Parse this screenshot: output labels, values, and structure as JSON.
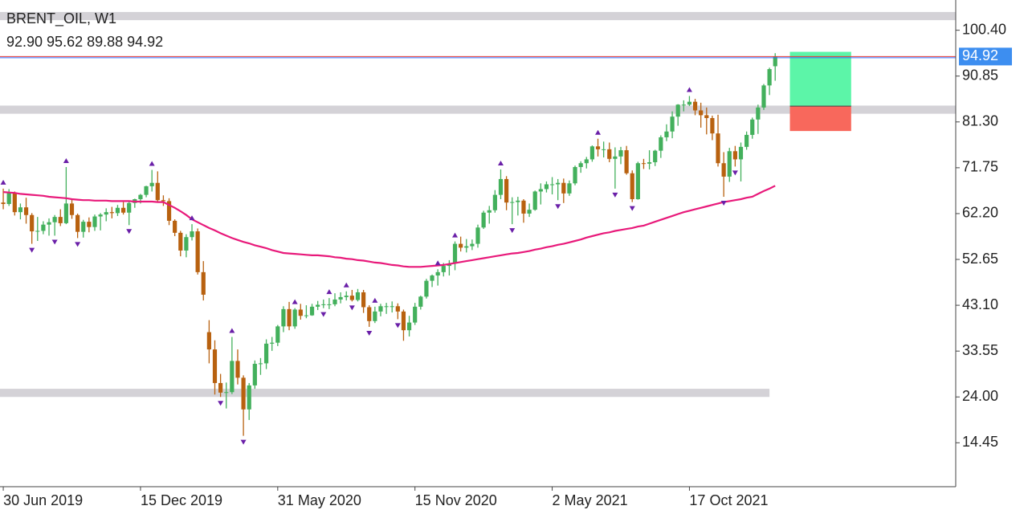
{
  "chart_data": {
    "type": "candlestick",
    "title": "BRENT_OIL, W1",
    "subtitle": "92.90 95.62 89.88 94.92",
    "up_color": "#43b05c",
    "down_color": "#b8610f",
    "x": [
      "2019-06-30",
      "2019-07-07",
      "2019-07-14",
      "2019-07-21",
      "2019-07-28",
      "2019-08-04",
      "2019-08-11",
      "2019-08-18",
      "2019-08-25",
      "2019-09-01",
      "2019-09-08",
      "2019-09-15",
      "2019-09-22",
      "2019-09-29",
      "2019-10-06",
      "2019-10-13",
      "2019-10-20",
      "2019-10-27",
      "2019-11-03",
      "2019-11-10",
      "2019-11-17",
      "2019-11-24",
      "2019-12-01",
      "2019-12-08",
      "2019-12-15",
      "2019-12-22",
      "2019-12-29",
      "2020-01-05",
      "2020-01-12",
      "2020-01-19",
      "2020-01-26",
      "2020-02-02",
      "2020-02-09",
      "2020-02-16",
      "2020-02-23",
      "2020-03-01",
      "2020-03-08",
      "2020-03-15",
      "2020-03-22",
      "2020-03-29",
      "2020-04-05",
      "2020-04-12",
      "2020-04-19",
      "2020-04-26",
      "2020-05-03",
      "2020-05-10",
      "2020-05-17",
      "2020-05-24",
      "2020-05-31",
      "2020-06-07",
      "2020-06-14",
      "2020-06-21",
      "2020-06-28",
      "2020-07-05",
      "2020-07-12",
      "2020-07-19",
      "2020-07-26",
      "2020-08-02",
      "2020-08-09",
      "2020-08-16",
      "2020-08-23",
      "2020-08-30",
      "2020-09-06",
      "2020-09-13",
      "2020-09-20",
      "2020-09-27",
      "2020-10-04",
      "2020-10-11",
      "2020-10-18",
      "2020-10-25",
      "2020-11-01",
      "2020-11-08",
      "2020-11-15",
      "2020-11-22",
      "2020-11-29",
      "2020-12-06",
      "2020-12-13",
      "2020-12-20",
      "2020-12-27",
      "2021-01-03",
      "2021-01-10",
      "2021-01-17",
      "2021-01-24",
      "2021-01-31",
      "2021-02-07",
      "2021-02-14",
      "2021-02-21",
      "2021-02-28",
      "2021-03-07",
      "2021-03-14",
      "2021-03-21",
      "2021-03-28",
      "2021-04-04",
      "2021-04-11",
      "2021-04-18",
      "2021-04-25",
      "2021-05-02",
      "2021-05-09",
      "2021-05-16",
      "2021-05-23",
      "2021-05-30",
      "2021-06-06",
      "2021-06-13",
      "2021-06-20",
      "2021-06-27",
      "2021-07-04",
      "2021-07-11",
      "2021-07-18",
      "2021-07-25",
      "2021-08-01",
      "2021-08-08",
      "2021-08-15",
      "2021-08-22",
      "2021-08-29",
      "2021-09-05",
      "2021-09-12",
      "2021-09-19",
      "2021-09-26",
      "2021-10-03",
      "2021-10-10",
      "2021-10-17",
      "2021-10-24",
      "2021-10-31",
      "2021-11-07",
      "2021-11-14",
      "2021-11-21",
      "2021-11-28",
      "2021-12-05",
      "2021-12-12",
      "2021-12-19",
      "2021-12-26",
      "2022-01-02",
      "2022-01-09",
      "2022-01-16",
      "2022-01-23",
      "2022-01-30"
    ],
    "candles": [
      [
        64.5,
        67.4,
        63.1,
        64.2
      ],
      [
        64.2,
        67.3,
        63.8,
        66.5
      ],
      [
        66.5,
        66.8,
        61.8,
        62.5
      ],
      [
        62.5,
        64.3,
        61.0,
        63.5
      ],
      [
        63.5,
        65.5,
        60.1,
        61.9
      ],
      [
        61.9,
        62.3,
        55.9,
        58.5
      ],
      [
        58.5,
        61.5,
        56.5,
        58.6
      ],
      [
        58.6,
        60.6,
        57.9,
        59.9
      ],
      [
        59.9,
        61.2,
        57.6,
        60.4
      ],
      [
        60.4,
        61.9,
        57.6,
        61.5
      ],
      [
        61.5,
        63.1,
        59.6,
        60.2
      ],
      [
        60.2,
        71.9,
        60.0,
        64.3
      ],
      [
        64.3,
        65.1,
        61.1,
        61.9
      ],
      [
        61.9,
        62.2,
        57.1,
        58.4
      ],
      [
        58.4,
        60.9,
        57.2,
        60.5
      ],
      [
        60.5,
        61.4,
        58.3,
        59.4
      ],
      [
        59.4,
        62.0,
        58.6,
        61.6
      ],
      [
        61.6,
        62.3,
        58.7,
        62.0
      ],
      [
        62.0,
        63.3,
        60.6,
        62.5
      ],
      [
        62.5,
        63.6,
        61.2,
        62.3
      ],
      [
        62.3,
        64.0,
        61.7,
        63.4
      ],
      [
        63.4,
        64.6,
        62.0,
        62.4
      ],
      [
        62.4,
        64.8,
        59.8,
        64.4
      ],
      [
        64.4,
        65.3,
        63.4,
        65.2
      ],
      [
        65.2,
        66.3,
        64.3,
        66.1
      ],
      [
        66.1,
        68.0,
        65.6,
        67.9
      ],
      [
        67.9,
        71.3,
        66.8,
        68.6
      ],
      [
        68.6,
        71.0,
        64.6,
        65.0
      ],
      [
        65.0,
        66.0,
        63.8,
        64.8
      ],
      [
        64.8,
        65.4,
        59.8,
        60.7
      ],
      [
        60.7,
        61.0,
        57.5,
        58.2
      ],
      [
        58.2,
        58.6,
        53.3,
        54.5
      ],
      [
        54.5,
        57.9,
        53.1,
        57.3
      ],
      [
        57.3,
        60.0,
        56.6,
        58.5
      ],
      [
        58.5,
        59.1,
        49.5,
        50.0
      ],
      [
        50.0,
        52.3,
        44.1,
        45.3
      ],
      [
        37.5,
        40.0,
        31.0,
        33.9
      ],
      [
        33.9,
        35.8,
        24.5,
        26.9
      ],
      [
        26.9,
        28.8,
        24.0,
        24.9
      ],
      [
        24.9,
        27.0,
        21.6,
        25.0
      ],
      [
        25.0,
        36.5,
        24.6,
        31.5
      ],
      [
        31.5,
        33.9,
        26.6,
        28.0
      ],
      [
        28.0,
        28.5,
        15.9,
        21.4
      ],
      [
        21.4,
        26.9,
        19.2,
        26.4
      ],
      [
        26.4,
        31.6,
        25.7,
        30.9
      ],
      [
        30.9,
        32.1,
        28.6,
        31.0
      ],
      [
        31.0,
        36.0,
        29.8,
        35.1
      ],
      [
        35.1,
        36.5,
        33.6,
        35.3
      ],
      [
        35.3,
        39.0,
        34.6,
        38.7
      ],
      [
        38.7,
        42.9,
        37.5,
        42.3
      ],
      [
        42.3,
        43.8,
        37.9,
        38.7
      ],
      [
        38.7,
        42.5,
        38.2,
        42.2
      ],
      [
        42.2,
        43.4,
        40.1,
        40.9
      ],
      [
        40.9,
        43.1,
        40.4,
        41.0
      ],
      [
        41.0,
        43.4,
        40.9,
        42.8
      ],
      [
        42.8,
        44.0,
        42.1,
        43.2
      ],
      [
        43.2,
        44.3,
        42.5,
        43.3
      ],
      [
        43.3,
        44.6,
        42.3,
        43.3
      ],
      [
        43.3,
        45.6,
        42.9,
        44.3
      ],
      [
        44.3,
        45.8,
        43.5,
        44.8
      ],
      [
        44.8,
        46.0,
        44.1,
        45.1
      ],
      [
        45.1,
        46.3,
        43.9,
        44.2
      ],
      [
        44.2,
        46.5,
        43.9,
        45.8
      ],
      [
        45.8,
        46.3,
        41.5,
        42.7
      ],
      [
        42.7,
        43.1,
        38.6,
        39.8
      ],
      [
        39.8,
        42.8,
        39.4,
        41.8
      ],
      [
        41.8,
        43.4,
        40.8,
        42.9
      ],
      [
        42.9,
        43.6,
        41.3,
        42.9
      ],
      [
        42.9,
        43.9,
        41.6,
        42.9
      ],
      [
        42.9,
        43.5,
        40.2,
        41.8
      ],
      [
        41.8,
        42.2,
        35.7,
        37.9
      ],
      [
        37.9,
        40.9,
        36.6,
        39.5
      ],
      [
        39.5,
        43.6,
        39.0,
        42.8
      ],
      [
        42.8,
        45.1,
        42.2,
        44.9
      ],
      [
        44.9,
        48.6,
        44.5,
        48.2
      ],
      [
        48.2,
        49.5,
        46.9,
        49.3
      ],
      [
        49.3,
        50.6,
        47.2,
        50.0
      ],
      [
        50.0,
        51.9,
        49.1,
        51.3
      ],
      [
        51.3,
        52.5,
        49.3,
        51.8
      ],
      [
        51.8,
        56.4,
        50.4,
        55.9
      ],
      [
        55.9,
        57.4,
        54.3,
        55.1
      ],
      [
        55.1,
        56.9,
        54.1,
        55.4
      ],
      [
        55.4,
        56.8,
        54.6,
        55.9
      ],
      [
        55.9,
        59.9,
        55.1,
        59.3
      ],
      [
        59.3,
        62.8,
        59.0,
        62.4
      ],
      [
        62.4,
        63.8,
        60.1,
        62.9
      ],
      [
        62.9,
        67.1,
        62.4,
        66.1
      ],
      [
        66.1,
        71.4,
        65.2,
        69.4
      ],
      [
        69.4,
        70.0,
        62.9,
        64.5
      ],
      [
        64.5,
        65.6,
        60.0,
        64.6
      ],
      [
        64.6,
        65.7,
        61.8,
        64.9
      ],
      [
        64.9,
        65.2,
        60.3,
        62.2
      ],
      [
        62.2,
        64.3,
        61.5,
        63.0
      ],
      [
        63.0,
        67.0,
        62.8,
        66.8
      ],
      [
        66.8,
        68.5,
        64.1,
        67.3
      ],
      [
        67.3,
        68.9,
        66.6,
        68.3
      ],
      [
        68.3,
        69.8,
        66.2,
        68.3
      ],
      [
        68.3,
        69.4,
        65.0,
        68.6
      ],
      [
        68.6,
        69.5,
        64.4,
        66.4
      ],
      [
        66.4,
        69.1,
        65.9,
        68.5
      ],
      [
        68.5,
        72.2,
        68.1,
        71.9
      ],
      [
        71.9,
        73.1,
        70.7,
        72.7
      ],
      [
        72.7,
        74.0,
        71.6,
        73.5
      ],
      [
        73.5,
        76.4,
        73.0,
        76.2
      ],
      [
        76.2,
        77.8,
        74.1,
        75.6
      ],
      [
        75.6,
        77.2,
        73.9,
        75.6
      ],
      [
        75.6,
        77.0,
        72.9,
        73.6
      ],
      [
        73.6,
        76.0,
        67.4,
        74.1
      ],
      [
        74.1,
        76.1,
        72.5,
        75.4
      ],
      [
        75.4,
        76.3,
        70.3,
        70.6
      ],
      [
        70.6,
        71.2,
        64.6,
        65.2
      ],
      [
        65.2,
        73.0,
        65.1,
        72.7
      ],
      [
        72.7,
        73.6,
        71.5,
        72.6
      ],
      [
        72.6,
        75.4,
        71.4,
        72.9
      ],
      [
        72.9,
        75.5,
        72.1,
        75.3
      ],
      [
        75.3,
        78.5,
        73.8,
        78.1
      ],
      [
        78.1,
        80.8,
        77.3,
        79.3
      ],
      [
        79.3,
        83.5,
        77.9,
        82.4
      ],
      [
        82.4,
        85.0,
        80.5,
        84.9
      ],
      [
        84.9,
        85.8,
        83.5,
        84.9
      ],
      [
        84.9,
        86.7,
        84.6,
        85.5
      ],
      [
        85.5,
        86.1,
        82.7,
        83.7
      ],
      [
        83.7,
        85.3,
        80.1,
        82.7
      ],
      [
        82.7,
        84.3,
        78.7,
        82.1
      ],
      [
        82.1,
        82.6,
        77.5,
        78.9
      ],
      [
        78.9,
        82.8,
        72.0,
        72.7
      ],
      [
        72.7,
        75.0,
        65.7,
        69.9
      ],
      [
        69.9,
        75.9,
        68.8,
        75.2
      ],
      [
        75.2,
        76.3,
        72.0,
        73.5
      ],
      [
        73.5,
        77.0,
        68.9,
        76.1
      ],
      [
        76.1,
        79.3,
        75.5,
        78.6
      ],
      [
        78.6,
        82.2,
        77.8,
        81.8
      ],
      [
        81.8,
        84.9,
        78.8,
        84.3
      ],
      [
        84.3,
        89.2,
        83.8,
        88.9
      ],
      [
        88.9,
        92.6,
        86.9,
        92.3
      ],
      [
        92.9,
        95.62,
        89.88,
        94.92
      ]
    ],
    "ma_color": "#e8197a",
    "ma_values": [
      66.7,
      66.6,
      66.5,
      66.3,
      66.2,
      66.1,
      66.0,
      65.9,
      65.7,
      65.6,
      65.5,
      65.4,
      65.2,
      65.1,
      65.0,
      65.0,
      64.9,
      64.9,
      64.9,
      64.8,
      64.8,
      64.8,
      64.8,
      64.7,
      64.7,
      64.7,
      64.7,
      64.6,
      64.6,
      64.0,
      63.4,
      62.7,
      61.9,
      61.0,
      60.4,
      59.8,
      59.2,
      58.7,
      58.1,
      57.6,
      57.1,
      56.7,
      56.3,
      56.0,
      55.6,
      55.3,
      55.0,
      54.6,
      54.3,
      54.0,
      53.9,
      53.8,
      53.7,
      53.6,
      53.5,
      53.5,
      53.4,
      53.3,
      53.1,
      53.0,
      52.8,
      52.7,
      52.5,
      52.4,
      52.2,
      52.0,
      51.9,
      51.7,
      51.5,
      51.4,
      51.2,
      51.1,
      51.1,
      51.1,
      51.2,
      51.3,
      51.4,
      51.5,
      51.7,
      51.9,
      52.1,
      52.3,
      52.5,
      52.7,
      52.9,
      53.1,
      53.3,
      53.5,
      53.7,
      53.9,
      54.0,
      54.2,
      54.4,
      54.7,
      54.9,
      55.2,
      55.4,
      55.7,
      55.9,
      56.2,
      56.5,
      56.8,
      57.2,
      57.5,
      57.8,
      58.1,
      58.3,
      58.6,
      58.8,
      59.0,
      59.2,
      59.5,
      59.7,
      60.1,
      60.5,
      60.9,
      61.3,
      61.7,
      62.1,
      62.5,
      62.8,
      63.1,
      63.4,
      63.7,
      64.0,
      64.3,
      64.6,
      64.8,
      65.0,
      65.2,
      65.5,
      65.7,
      66.3,
      66.9,
      67.4,
      68.0
    ],
    "fractal_color": "#6a1fa8",
    "fractals_up": [
      0,
      11,
      26,
      33,
      40,
      51,
      57,
      60,
      65,
      76,
      79,
      87,
      104,
      120
    ],
    "fractals_down": [
      5,
      9,
      13,
      22,
      38,
      42,
      56,
      61,
      64,
      69,
      89,
      97,
      107,
      110,
      126,
      128
    ],
    "zone_color": "#d4d2d7",
    "zones": [
      {
        "range": [
          102.5,
          104.2
        ]
      },
      {
        "range": [
          83.0,
          84.7
        ]
      },
      {
        "range": [
          24.0,
          25.7
        ],
        "end": "2022-01-23"
      }
    ],
    "position": {
      "start": "2022-02-17",
      "end": "2022-05-03",
      "entry": 84.6,
      "take": 95.9,
      "stop": 79.4,
      "take_color": "#5cf5a8",
      "stop_color": "#f8685c"
    },
    "price_line_color": "#e53935",
    "bid_line_color": "#2f6bff",
    "price_label_color": "#3d8ef0",
    "xlim": [
      "2019-06-26",
      "2022-09-08"
    ],
    "xticks": [
      {
        "value": "2019-06-30",
        "label": "30 Jun 2019"
      },
      {
        "value": "2019-12-15",
        "label": "15 Dec 2019"
      },
      {
        "value": "2020-05-31",
        "label": "31 May 2020"
      },
      {
        "value": "2020-11-15",
        "label": "15 Nov 2020"
      },
      {
        "value": "2021-05-02",
        "label": "2 May 2021"
      },
      {
        "value": "2021-10-17",
        "label": "17 Oct 2021"
      }
    ],
    "ylim": [
      5.3,
      106.7
    ],
    "yticks": [
      {
        "value": 100.4,
        "label": "100.40"
      },
      90.85,
      {
        "value": 81.3,
        "label": "81.30"
      },
      71.75,
      {
        "value": 62.2,
        "label": "62.20"
      },
      52.65,
      {
        "value": 43.1,
        "label": "43.10"
      },
      33.55,
      {
        "value": 24,
        "label": "24.00"
      },
      14.45
    ]
  }
}
